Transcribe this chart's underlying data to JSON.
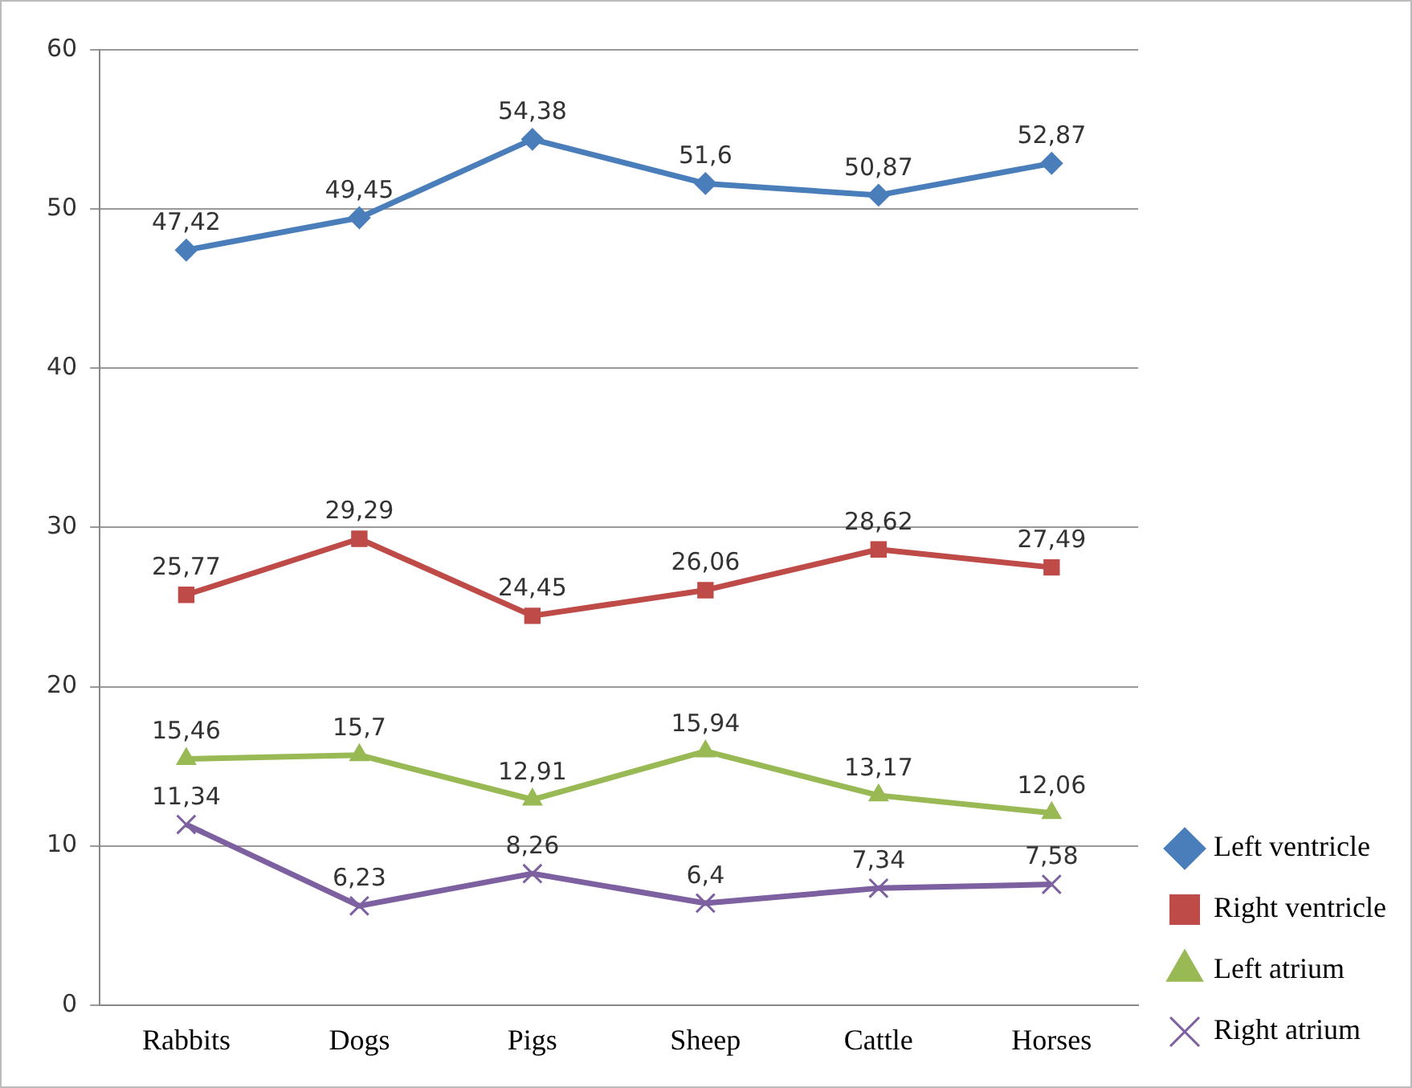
{
  "chart_data": {
    "type": "line",
    "categories": [
      "Rabbits",
      "Dogs",
      "Pigs",
      "Sheep",
      "Cattle",
      "Horses"
    ],
    "series": [
      {
        "name": "Left ventricle",
        "color": "#4a7ebb",
        "marker": "diamond",
        "values": [
          47.42,
          49.45,
          54.38,
          51.6,
          50.87,
          52.87
        ],
        "value_labels": [
          "47,42",
          "49,45",
          "54,38",
          "51,6",
          "50,87",
          "52,87"
        ]
      },
      {
        "name": "Right ventricle",
        "color": "#be4b48",
        "marker": "square",
        "values": [
          25.77,
          29.29,
          24.45,
          26.06,
          28.62,
          27.49
        ],
        "value_labels": [
          "25,77",
          "29,29",
          "24,45",
          "26,06",
          "28,62",
          "27,49"
        ]
      },
      {
        "name": "Left atrium",
        "color": "#98b954",
        "marker": "triangle",
        "values": [
          15.46,
          15.7,
          12.91,
          15.94,
          13.17,
          12.06
        ],
        "value_labels": [
          "15,46",
          "15,7",
          "12,91",
          "15,94",
          "13,17",
          "12,06"
        ]
      },
      {
        "name": "Right atrium",
        "color": "#7d60a0",
        "marker": "cross",
        "values": [
          11.34,
          6.23,
          8.26,
          6.4,
          7.34,
          7.58
        ],
        "value_labels": [
          "11,34",
          "6,23",
          "8,26",
          "6,4",
          "7,34",
          "7,58"
        ]
      }
    ],
    "ylim": [
      0,
      60
    ],
    "yticks": [
      0,
      10,
      20,
      30,
      40,
      50,
      60
    ],
    "grid": "y",
    "legend": "right",
    "line_style": "solid"
  }
}
